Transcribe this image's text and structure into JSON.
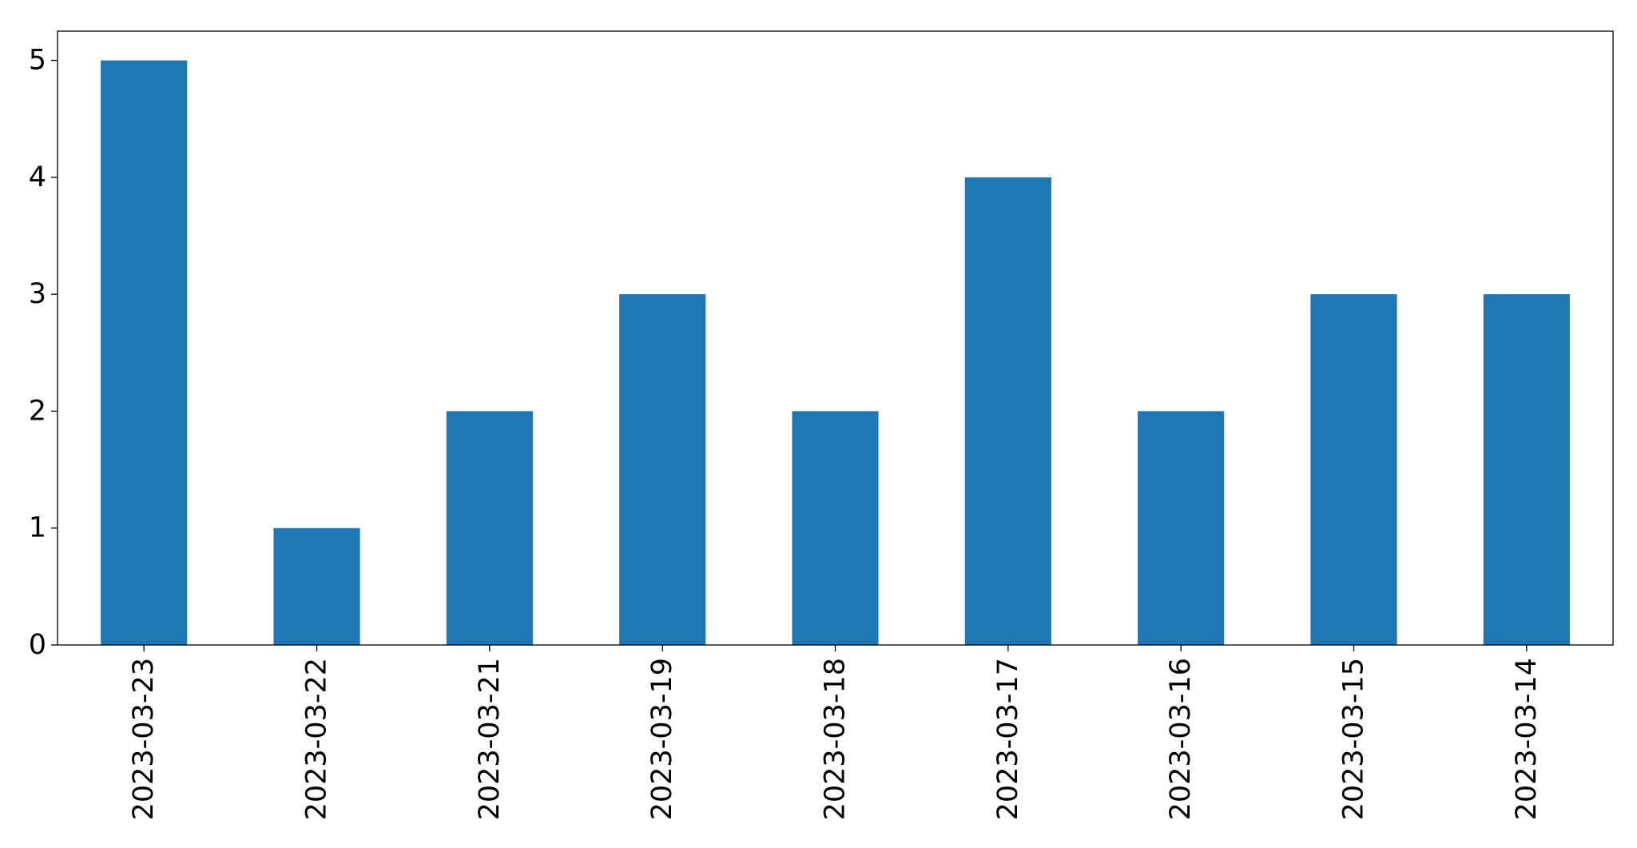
{
  "chart_data": {
    "type": "bar",
    "title": "",
    "xlabel": "",
    "ylabel": "",
    "categories": [
      "2023-03-23",
      "2023-03-22",
      "2023-03-21",
      "2023-03-19",
      "2023-03-18",
      "2023-03-17",
      "2023-03-16",
      "2023-03-15",
      "2023-03-14"
    ],
    "values": [
      5,
      1,
      2,
      3,
      2,
      4,
      2,
      3,
      3
    ],
    "ylim": [
      0,
      5.25
    ],
    "yticks": [
      0,
      1,
      2,
      3,
      4,
      5
    ],
    "x_tick_rotation": 90,
    "grid": false,
    "legend": "none",
    "bar_color": "#1f77b4"
  }
}
